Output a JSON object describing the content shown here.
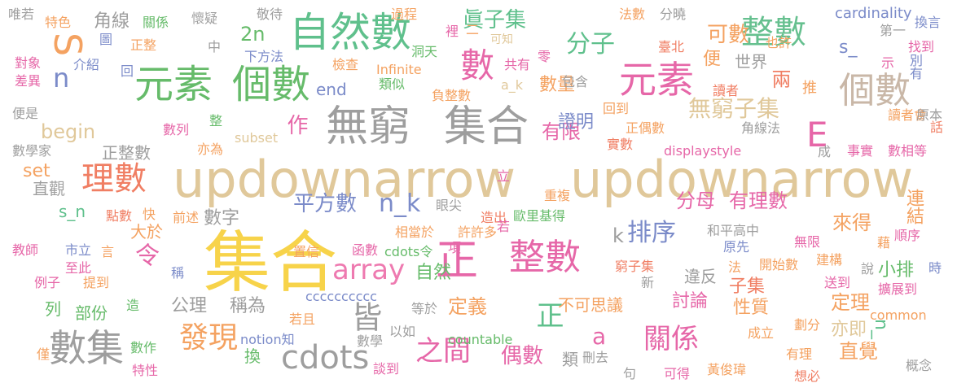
{
  "words": [
    {
      "text": "updownarrow",
      "color": "#e0c89a"
    },
    {
      "text": "updownarrow",
      "color": "#e0c89a"
    },
    {
      "text": "集合",
      "color": "#f7d34a"
    },
    {
      "text": "無窮",
      "color": "#9e9e9e"
    },
    {
      "text": "集合",
      "color": "#9e9e9e"
    },
    {
      "text": "自然數",
      "color": "#5fc08c"
    },
    {
      "text": "元素",
      "color": "#66bb6a"
    },
    {
      "text": "個數",
      "color": "#66bb6a"
    },
    {
      "text": "元素",
      "color": "#e667a8"
    },
    {
      "text": "個數",
      "color": "#c9b7a7"
    },
    {
      "text": "整數",
      "color": "#66c08f"
    },
    {
      "text": "正",
      "color": "#e667a8"
    },
    {
      "text": "整數",
      "color": "#e667a8"
    },
    {
      "text": "數集",
      "color": "#9e9e9e"
    },
    {
      "text": "理數",
      "color": "#f07e63"
    },
    {
      "text": "數",
      "color": "#e667a8"
    },
    {
      "text": "S",
      "color": "#f4a261"
    },
    {
      "text": "n",
      "color": "#7b8bc9"
    },
    {
      "text": "E",
      "color": "#e667a8"
    },
    {
      "text": "array",
      "color": "#ee7ab0"
    },
    {
      "text": "cdots",
      "color": "#9e9e9e"
    },
    {
      "text": "發現",
      "color": "#f4a261"
    },
    {
      "text": "之間",
      "color": "#e667a8"
    },
    {
      "text": "關係",
      "color": "#e667a8"
    },
    {
      "text": "無窮子集",
      "color": "#e0c89a"
    },
    {
      "text": "分子",
      "color": "#5fc08c"
    },
    {
      "text": "眞子集",
      "color": "#5fc08c"
    },
    {
      "text": "可數",
      "color": "#f4a261"
    },
    {
      "text": "皆",
      "color": "#9e9e9e"
    },
    {
      "text": "令",
      "color": "#e667a8"
    },
    {
      "text": "正",
      "color": "#5fc08c"
    },
    {
      "text": "a",
      "color": "#e667a8"
    },
    {
      "text": "平方數",
      "color": "#7b8bc9"
    },
    {
      "text": "n_k",
      "color": "#7b8bc9"
    },
    {
      "text": "排序",
      "color": "#7b8bc9"
    },
    {
      "text": "k",
      "color": "#9e9e9e"
    },
    {
      "text": "有限",
      "color": "#e667a8"
    },
    {
      "text": "分母",
      "color": "#e667a8"
    },
    {
      "text": "有理數",
      "color": "#e667a8"
    },
    {
      "text": "定義",
      "color": "#f4a261"
    },
    {
      "text": "偶數",
      "color": "#e667a8"
    },
    {
      "text": "直覺",
      "color": "#f4a261"
    },
    {
      "text": "定理",
      "color": "#f4a261"
    },
    {
      "text": "兩",
      "color": "#f07e63"
    },
    {
      "text": "作",
      "color": "#e667a8"
    },
    {
      "text": "begin",
      "color": "#e0c89a"
    },
    {
      "text": "set",
      "color": "#f4a261"
    },
    {
      "text": "end",
      "color": "#7b8bc9"
    },
    {
      "text": "2n",
      "color": "#66bb6a"
    },
    {
      "text": "數量",
      "color": "#f4a261"
    },
    {
      "text": "證明",
      "color": "#7b8bc9"
    },
    {
      "text": "便",
      "color": "#f4a261"
    },
    {
      "text": "世界",
      "color": "#9e9e9e"
    },
    {
      "text": "來得",
      "color": "#f4a261"
    },
    {
      "text": "公理",
      "color": "#9e9e9e"
    },
    {
      "text": "稱為",
      "color": "#9e9e9e"
    },
    {
      "text": "討論",
      "color": "#e667a8"
    },
    {
      "text": "性質",
      "color": "#f4a261"
    },
    {
      "text": "子集",
      "color": "#f07e63"
    },
    {
      "text": "小排",
      "color": "#66bb6a"
    },
    {
      "text": "亦即",
      "color": "#e0c89a"
    },
    {
      "text": "n_",
      "color": "#5fc08c"
    },
    {
      "text": "s_",
      "color": "#7b8bc9"
    },
    {
      "text": "s_n",
      "color": "#5fc08c"
    },
    {
      "text": "連結",
      "color": "#f4a261"
    },
    {
      "text": "數字",
      "color": "#9e9e9e"
    },
    {
      "text": "違反",
      "color": "#9e9e9e"
    },
    {
      "text": "不可思議",
      "color": "#f4a261"
    },
    {
      "text": "自然",
      "color": "#66bb6a"
    },
    {
      "text": "角線",
      "color": "#9e9e9e"
    },
    {
      "text": "正整數",
      "color": "#9e9e9e"
    },
    {
      "text": "直觀",
      "color": "#9e9e9e"
    },
    {
      "text": "大於",
      "color": "#f4a261"
    },
    {
      "text": "部份",
      "color": "#66bb6a"
    },
    {
      "text": "列",
      "color": "#66bb6a"
    },
    {
      "text": "類",
      "color": "#9e9e9e"
    },
    {
      "text": "換",
      "color": "#66bb6a"
    },
    {
      "text": "唯若",
      "color": "#9e9e9e"
    },
    {
      "text": "特色",
      "color": "#f4a261"
    },
    {
      "text": "關係",
      "color": "#66bb6a"
    },
    {
      "text": "懷疑",
      "color": "#9e9e9e"
    },
    {
      "text": "敬待",
      "color": "#9e9e9e"
    },
    {
      "text": "過程",
      "color": "#f4a261"
    },
    {
      "text": "裡",
      "color": "#e667a8"
    },
    {
      "text": "二",
      "color": "#f4a261"
    },
    {
      "text": "可知",
      "color": "#e0c89a"
    },
    {
      "text": "法數",
      "color": "#f4a261"
    },
    {
      "text": "分曉",
      "color": "#9e9e9e"
    },
    {
      "text": "cardinality",
      "color": "#7b8bc9"
    },
    {
      "text": "換言",
      "color": "#7b8bc9"
    },
    {
      "text": "圖",
      "color": "#7b8bc9"
    },
    {
      "text": "中",
      "color": "#9e9e9e"
    },
    {
      "text": "正整",
      "color": "#f4a261"
    },
    {
      "text": "介紹",
      "color": "#7b8bc9"
    },
    {
      "text": "下方法",
      "color": "#7b8bc9"
    },
    {
      "text": "檢查",
      "color": "#f4a261"
    },
    {
      "text": "洞天",
      "color": "#66bb6a"
    },
    {
      "text": "共有",
      "color": "#e667a8"
    },
    {
      "text": "零",
      "color": "#e667a8"
    },
    {
      "text": "臺北",
      "color": "#f07e63"
    },
    {
      "text": "也許",
      "color": "#f4a261"
    },
    {
      "text": "第一",
      "color": "#9e9e9e"
    },
    {
      "text": "找到",
      "color": "#e667a8"
    },
    {
      "text": "別有",
      "color": "#7b8bc9"
    },
    {
      "text": "示",
      "color": "#e667a8"
    },
    {
      "text": "對象",
      "color": "#e667a8"
    },
    {
      "text": "差異",
      "color": "#e667a8"
    },
    {
      "text": "回",
      "color": "#7b8bc9"
    },
    {
      "text": "Infinite",
      "color": "#f4a261"
    },
    {
      "text": "類似",
      "color": "#66bb6a"
    },
    {
      "text": "a_k",
      "color": "#e0c89a"
    },
    {
      "text": "包含",
      "color": "#9e9e9e"
    },
    {
      "text": "推",
      "color": "#f4a261"
    },
    {
      "text": "讀者",
      "color": "#f07e63"
    },
    {
      "text": "讀者會",
      "color": "#f4a261"
    },
    {
      "text": "原本",
      "color": "#9e9e9e"
    },
    {
      "text": "便是",
      "color": "#9e9e9e"
    },
    {
      "text": "負整數",
      "color": "#f4a261"
    },
    {
      "text": "回到",
      "color": "#f4a261"
    },
    {
      "text": "正偶數",
      "color": "#f4a261"
    },
    {
      "text": "數列",
      "color": "#e667a8"
    },
    {
      "text": "整",
      "color": "#66bb6a"
    },
    {
      "text": "角線法",
      "color": "#9e9e9e"
    },
    {
      "text": "話",
      "color": "#f07e63"
    },
    {
      "text": "數學家",
      "color": "#9e9e9e"
    },
    {
      "text": "亦為",
      "color": "#f4a261"
    },
    {
      "text": "subset",
      "color": "#e0c89a"
    },
    {
      "text": "實數",
      "color": "#f07e63"
    },
    {
      "text": "displaystyle",
      "color": "#e667a8"
    },
    {
      "text": "成",
      "color": "#9e9e9e"
    },
    {
      "text": "事實",
      "color": "#e667a8"
    },
    {
      "text": "數相等",
      "color": "#e667a8"
    },
    {
      "text": "重複",
      "color": "#f4a261"
    },
    {
      "text": "眼尖",
      "color": "#9e9e9e"
    },
    {
      "text": "造出",
      "color": "#f07e63"
    },
    {
      "text": "歐里基得",
      "color": "#66bb6a"
    },
    {
      "text": "點數",
      "color": "#f07e63"
    },
    {
      "text": "快",
      "color": "#f4a261"
    },
    {
      "text": "前述",
      "color": "#f4a261"
    },
    {
      "text": "若",
      "color": "#e667a8"
    },
    {
      "text": "立",
      "color": "#e667a8"
    },
    {
      "text": "置信",
      "color": "#f4a261"
    },
    {
      "text": "相當於",
      "color": "#f4a261"
    },
    {
      "text": "許許多",
      "color": "#f4a261"
    },
    {
      "text": "和平高中",
      "color": "#9e9e9e"
    },
    {
      "text": "原先",
      "color": "#7b8bc9"
    },
    {
      "text": "無限",
      "color": "#e667a8"
    },
    {
      "text": "藉",
      "color": "#f4a261"
    },
    {
      "text": "順序",
      "color": "#e667a8"
    },
    {
      "text": "教師",
      "color": "#e667a8"
    },
    {
      "text": "市立",
      "color": "#7b8bc9"
    },
    {
      "text": "言",
      "color": "#f4a261"
    },
    {
      "text": "函數",
      "color": "#e667a8"
    },
    {
      "text": "cdots令",
      "color": "#66bb6a"
    },
    {
      "text": "項",
      "color": "#e667a8"
    },
    {
      "text": "窮子集",
      "color": "#f07e63"
    },
    {
      "text": "法",
      "color": "#f4a261"
    },
    {
      "text": "開始數",
      "color": "#f4a261"
    },
    {
      "text": "建構",
      "color": "#f4a261"
    },
    {
      "text": "說",
      "color": "#9e9e9e"
    },
    {
      "text": "時",
      "color": "#7b8bc9"
    },
    {
      "text": "至此",
      "color": "#e667a8"
    },
    {
      "text": "稱",
      "color": "#7b8bc9"
    },
    {
      "text": "例子",
      "color": "#e667a8"
    },
    {
      "text": "提到",
      "color": "#f4a261"
    },
    {
      "text": "新",
      "color": "#9e9e9e"
    },
    {
      "text": "送到",
      "color": "#e667a8"
    },
    {
      "text": "擴展到",
      "color": "#e667a8"
    },
    {
      "text": "cccccccccc",
      "color": "#7b8bc9"
    },
    {
      "text": "common",
      "color": "#f4a261"
    },
    {
      "text": "造",
      "color": "#66bb6a"
    },
    {
      "text": "若且",
      "color": "#f4a261"
    },
    {
      "text": "等於",
      "color": "#9e9e9e"
    },
    {
      "text": "以如",
      "color": "#9e9e9e"
    },
    {
      "text": "數學",
      "color": "#9e9e9e"
    },
    {
      "text": "countable",
      "color": "#66bb6a"
    },
    {
      "text": "notion知",
      "color": "#7b8bc9"
    },
    {
      "text": "成立",
      "color": "#f4a261"
    },
    {
      "text": "劃分",
      "color": "#f4a261"
    },
    {
      "text": "有理",
      "color": "#f4a261"
    },
    {
      "text": "數作",
      "color": "#66bb6a"
    },
    {
      "text": "僅",
      "color": "#f4a261"
    },
    {
      "text": "特性",
      "color": "#e667a8"
    },
    {
      "text": "談到",
      "color": "#e667a8"
    },
    {
      "text": "刪去",
      "color": "#9e9e9e"
    },
    {
      "text": "句",
      "color": "#9e9e9e"
    },
    {
      "text": "可得",
      "color": "#e667a8"
    },
    {
      "text": "黃俊瑋",
      "color": "#f4a261"
    },
    {
      "text": "想必",
      "color": "#f07e63"
    },
    {
      "text": "概念",
      "color": "#9e9e9e"
    }
  ]
}
